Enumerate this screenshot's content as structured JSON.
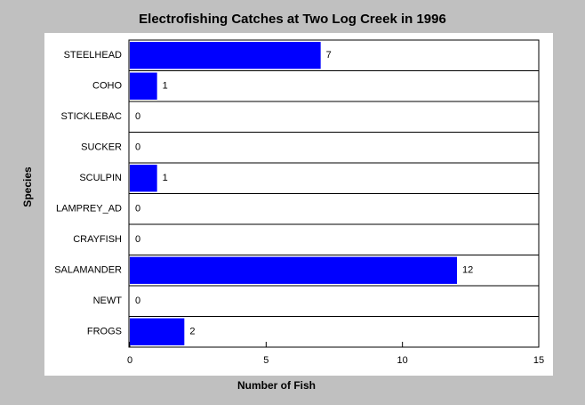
{
  "chart_data": {
    "type": "hbar",
    "title": "Electrofishing Catches at Two Log Creek in 1996",
    "x_label": "Number of Fish",
    "y_label": "Species",
    "categories": [
      "STEELHEAD",
      "COHO",
      "STICKLEBAC",
      "SUCKER",
      "SCULPIN",
      "LAMPREY_AD",
      "CRAYFISH",
      "SALAMANDER",
      "NEWT",
      "FROGS"
    ],
    "values": [
      7,
      1,
      0,
      0,
      1,
      0,
      0,
      12,
      0,
      2
    ],
    "color": "#0000ff",
    "xlim": [
      0,
      15
    ],
    "xticks": [
      0,
      5,
      10,
      15
    ]
  }
}
